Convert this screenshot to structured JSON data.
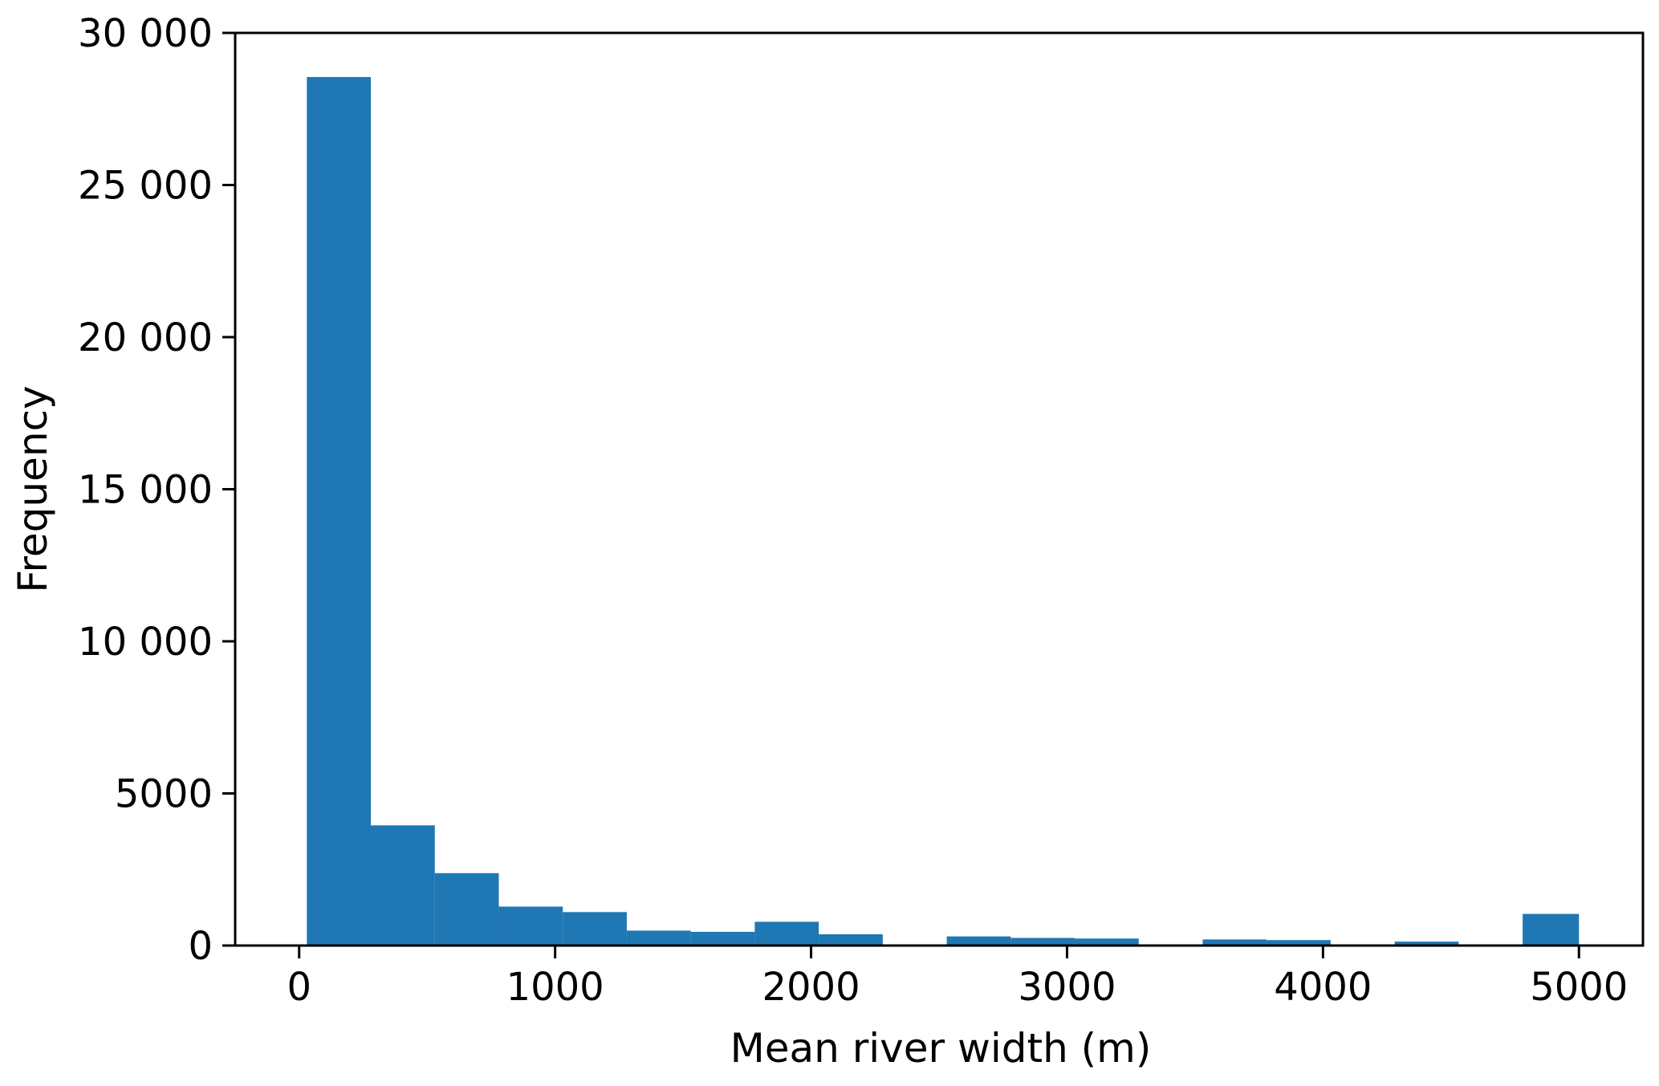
{
  "chart_data": {
    "type": "bar",
    "title": "",
    "xlabel": "Mean river width (m)",
    "ylabel": "Frequency",
    "xlim": [
      -250,
      5250
    ],
    "ylim": [
      0,
      30000
    ],
    "grid": false,
    "bar_color": "#1f77b4",
    "bin_edges": [
      30,
      280,
      530,
      780,
      1030,
      1280,
      1530,
      1780,
      2030,
      2280,
      2530,
      2780,
      3030,
      3280,
      3530,
      3780,
      4030,
      4280,
      4530,
      4780,
      5000
    ],
    "values": [
      28550,
      3950,
      2380,
      1280,
      1100,
      490,
      450,
      780,
      370,
      0,
      300,
      250,
      230,
      0,
      200,
      180,
      0,
      130,
      0,
      1040
    ],
    "x_ticks": [
      {
        "value": 0,
        "label": "0"
      },
      {
        "value": 1000,
        "label": "1000"
      },
      {
        "value": 2000,
        "label": "2000"
      },
      {
        "value": 3000,
        "label": "3000"
      },
      {
        "value": 4000,
        "label": "4000"
      },
      {
        "value": 5000,
        "label": "5000"
      }
    ],
    "y_ticks": [
      {
        "value": 0,
        "label": "0"
      },
      {
        "value": 5000,
        "label": "5000"
      },
      {
        "value": 10000,
        "label": "10 000"
      },
      {
        "value": 15000,
        "label": "15 000"
      },
      {
        "value": 20000,
        "label": "20 000"
      },
      {
        "value": 25000,
        "label": "25 000"
      },
      {
        "value": 30000,
        "label": "30 000"
      }
    ]
  }
}
